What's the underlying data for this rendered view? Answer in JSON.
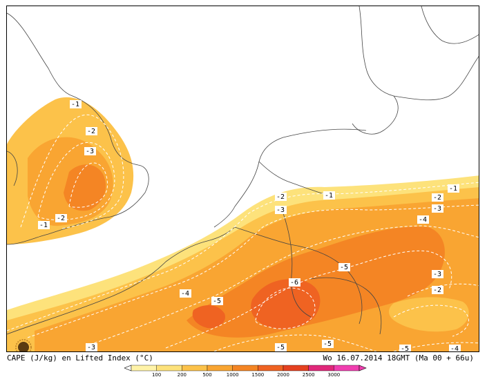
{
  "title_left": "CAPE (J/kg) en Lifted Index (°C)",
  "title_right": "Wo 16.07.2014 18GMT (Ma 00 + 66u)",
  "legend": {
    "ticks": [
      "100",
      "200",
      "500",
      "1000",
      "1500",
      "2000",
      "2500",
      "3000"
    ],
    "colors": [
      "#fff3a8",
      "#fde27b",
      "#fcc24a",
      "#f9a532",
      "#f48524",
      "#ef6322",
      "#e54120",
      "#e0287a",
      "#f03fb0"
    ]
  },
  "contour_labels": [
    {
      "text": "-1"
    },
    {
      "text": "-2"
    },
    {
      "text": "-3"
    },
    {
      "text": "-2"
    },
    {
      "text": "-1"
    },
    {
      "text": "-2"
    },
    {
      "text": "-1"
    },
    {
      "text": "-3"
    },
    {
      "text": "-1"
    },
    {
      "text": "-2"
    },
    {
      "text": "-3"
    },
    {
      "text": "-4"
    },
    {
      "text": "-5"
    },
    {
      "text": "-6"
    },
    {
      "text": "-4"
    },
    {
      "text": "-5"
    },
    {
      "text": "-3"
    },
    {
      "text": "-2"
    },
    {
      "text": "-3"
    },
    {
      "text": "-5"
    },
    {
      "text": "-5"
    },
    {
      "text": "-5"
    },
    {
      "text": "-4"
    }
  ],
  "icon": "sun-logo-icon"
}
